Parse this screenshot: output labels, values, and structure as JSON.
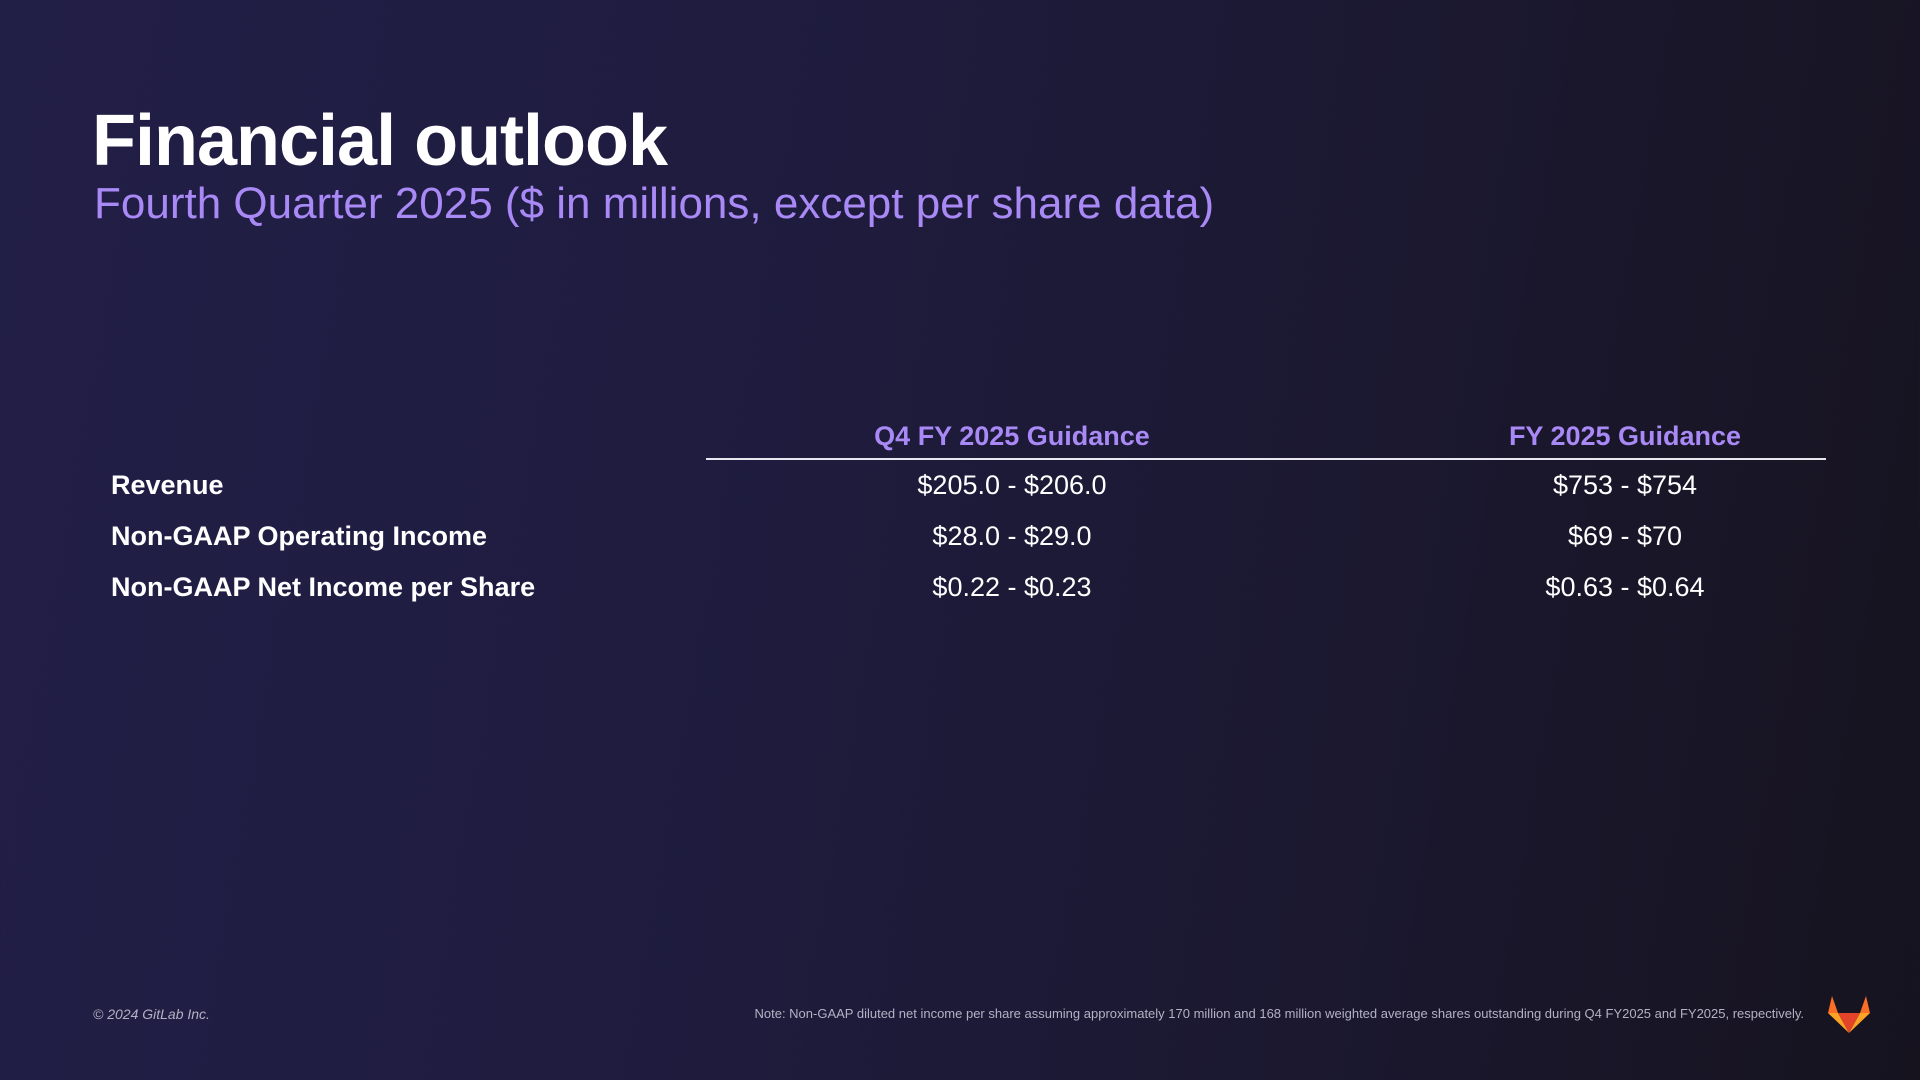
{
  "slide": {
    "title": "Financial outlook",
    "subtitle": "Fourth Quarter 2025 ($ in millions, except per share data)"
  },
  "table": {
    "columns": [
      "Q4 FY 2025 Guidance",
      "FY 2025 Guidance"
    ],
    "rows": [
      {
        "label": "Revenue",
        "q4": "$205.0 - $206.0",
        "fy": "$753 - $754"
      },
      {
        "label": "Non-GAAP Operating Income",
        "q4": "$28.0 - $29.0",
        "fy": "$69 - $70"
      },
      {
        "label": "Non-GAAP Net Income per Share",
        "q4": "$0.22 - $0.23",
        "fy": "$0.63 - $0.64"
      }
    ]
  },
  "footer": {
    "copyright": "© 2024 GitLab Inc.",
    "note": "Note: Non-GAAP diluted net income per share assuming approximately 170 million and 168 million weighted average shares outstanding during Q4 FY2025 and FY2025, respectively.",
    "logo_icon": "gitlab-tanuki-icon"
  },
  "colors": {
    "accent": "#a989f5",
    "background": "#1f1c40",
    "logo_orange": "#fc6d26",
    "logo_red": "#e24329",
    "logo_amber": "#fca326"
  }
}
